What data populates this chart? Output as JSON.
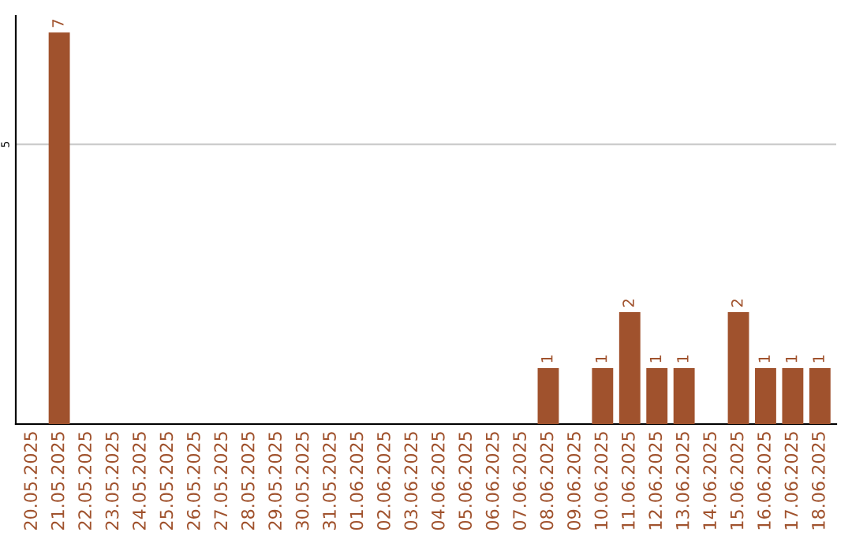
{
  "chart_data": {
    "type": "bar",
    "categories": [
      "20.05.2025",
      "21.05.2025",
      "22.05.2025",
      "23.05.2025",
      "24.05.2025",
      "25.05.2025",
      "26.05.2025",
      "27.05.2025",
      "28.05.2025",
      "29.05.2025",
      "30.05.2025",
      "31.05.2025",
      "01.06.2025",
      "02.06.2025",
      "03.06.2025",
      "04.06.2025",
      "05.06.2025",
      "06.06.2025",
      "07.06.2025",
      "08.06.2025",
      "09.06.2025",
      "10.06.2025",
      "11.06.2025",
      "12.06.2025",
      "13.06.2025",
      "14.06.2025",
      "15.06.2025",
      "16.06.2025",
      "17.06.2025",
      "18.06.2025"
    ],
    "values": [
      0,
      7,
      0,
      0,
      0,
      0,
      0,
      0,
      0,
      0,
      0,
      0,
      0,
      0,
      0,
      0,
      0,
      0,
      0,
      1,
      0,
      1,
      2,
      1,
      1,
      0,
      2,
      1,
      1,
      1
    ],
    "value_labels": [
      null,
      "7",
      null,
      null,
      null,
      null,
      null,
      null,
      null,
      null,
      null,
      null,
      null,
      null,
      null,
      null,
      null,
      null,
      null,
      "1",
      null,
      "1",
      "2",
      "1",
      "1",
      null,
      "2",
      "1",
      "1",
      "1"
    ],
    "color": "#a0522d",
    "ylim": [
      0,
      7.3
    ],
    "yticks": [
      5
    ],
    "grid": "y"
  }
}
